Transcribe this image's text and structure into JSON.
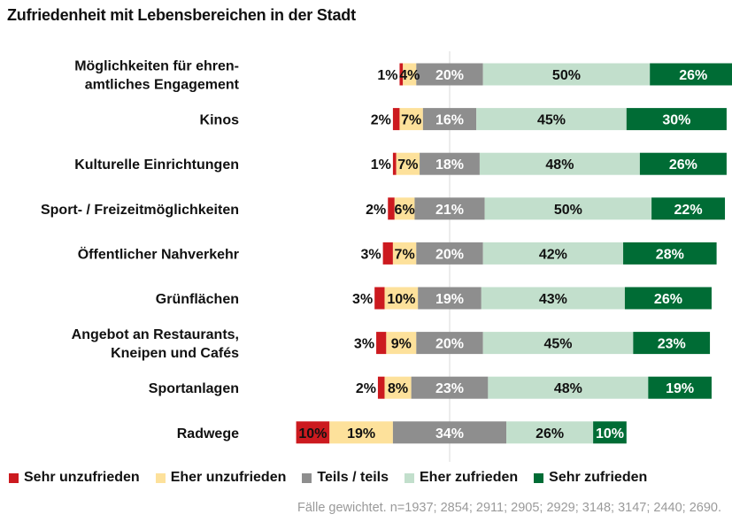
{
  "title": "Zufriedenheit mit Lebensbereichen in der Stadt",
  "footnote": "Fälle gewichtet. n=1937; 2854; 2911; 2905; 2929; 3148; 3147; 2440; 2690.",
  "colors": {
    "sehr_unzufrieden": "#cc1a1f",
    "eher_unzufrieden": "#fde19b",
    "teils": "#8e8e8e",
    "eher_zufrieden": "#c2dfcc",
    "sehr_zufrieden": "#006c35"
  },
  "legend": [
    {
      "label": "Sehr unzufrieden",
      "color": "#cc1a1f"
    },
    {
      "label": "Eher unzufrieden",
      "color": "#fde19b"
    },
    {
      "label": "Teils / teils",
      "color": "#8e8e8e"
    },
    {
      "label": "Eher zufrieden",
      "color": "#c2dfcc"
    },
    {
      "label": "Sehr zufrieden",
      "color": "#006c35"
    }
  ],
  "chart_data": {
    "type": "bar",
    "orientation": "horizontal",
    "stacked": "diverging",
    "center": "middle of Teils / teils",
    "categories": [
      [
        "Möglichkeiten für ehren-",
        "amtliches Engagement"
      ],
      [
        "Kinos"
      ],
      [
        "Kulturelle Einrichtungen"
      ],
      [
        "Sport- / Freizeitmöglichkeiten"
      ],
      [
        "Öffentlicher Nahverkehr"
      ],
      [
        "Grünflächen"
      ],
      [
        "Angebot an Restaurants,",
        "Kneipen und Cafés"
      ],
      [
        "Sportanlagen"
      ],
      [
        "Radwege"
      ]
    ],
    "series": [
      {
        "name": "Sehr unzufrieden",
        "values": [
          1,
          2,
          1,
          2,
          3,
          3,
          3,
          2,
          10
        ]
      },
      {
        "name": "Eher unzufrieden",
        "values": [
          4,
          7,
          7,
          6,
          7,
          10,
          9,
          8,
          19
        ]
      },
      {
        "name": "Teils / teils",
        "values": [
          20,
          16,
          18,
          21,
          20,
          19,
          20,
          23,
          34
        ]
      },
      {
        "name": "Eher zufrieden",
        "values": [
          50,
          45,
          48,
          50,
          42,
          43,
          45,
          48,
          26
        ]
      },
      {
        "name": "Sehr zufrieden",
        "values": [
          26,
          30,
          26,
          22,
          28,
          26,
          23,
          19,
          10
        ]
      }
    ],
    "grid": false,
    "legend_position": "bottom"
  }
}
